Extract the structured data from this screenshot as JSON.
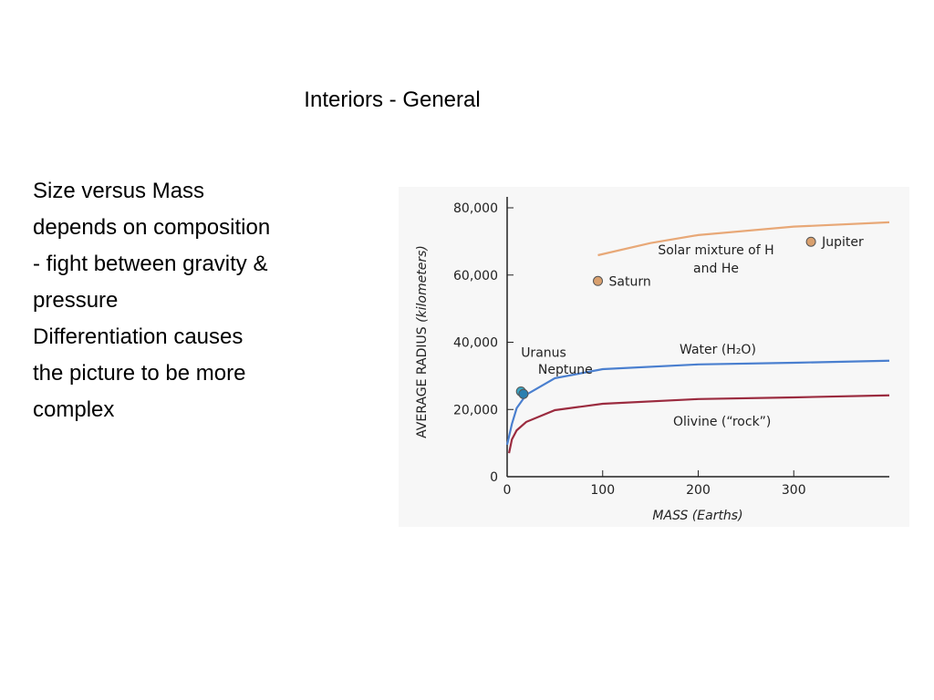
{
  "title": "Interiors - General",
  "body": [
    "Size versus Mass",
    "depends on composition",
    "- fight between gravity &",
    "pressure",
    "Differentiation causes",
    "the picture to be more",
    "complex"
  ],
  "chart_data": {
    "type": "line",
    "xlabel": "MASS (Earths)",
    "ylabel": "AVERAGE RADIUS",
    "ylabel_unit": "(kilometers)",
    "xlim": [
      0,
      400
    ],
    "xticks": [
      0,
      100,
      200,
      300
    ],
    "ylim": [
      0,
      80000
    ],
    "yticks": [
      0,
      {
        "value": 20000,
        "label": "20,000"
      },
      {
        "value": 40000,
        "label": "40,000"
      },
      {
        "value": 60000,
        "label": "60,000"
      },
      {
        "value": 80000,
        "label": "80,000"
      }
    ],
    "series": [
      {
        "name": "Solar mixture of H and He",
        "color": "#e8a877",
        "x": [
          95,
          150,
          200,
          300,
          400
        ],
        "values": [
          65900,
          69500,
          71900,
          74400,
          75700
        ]
      },
      {
        "name": "Water (H₂O)",
        "color": "#4a7fcf",
        "x": [
          0,
          5,
          10,
          20,
          50,
          100,
          200,
          300,
          400
        ],
        "values": [
          9500,
          15700,
          20400,
          24400,
          29300,
          32000,
          33400,
          33900,
          34500
        ]
      },
      {
        "name": "Olivine (“rock”)",
        "color": "#9b2b3f",
        "x": [
          2,
          5,
          10,
          20,
          50,
          100,
          200,
          300,
          400
        ],
        "values": [
          7000,
          11100,
          13800,
          16300,
          19800,
          21700,
          23100,
          23600,
          24200
        ]
      }
    ],
    "points": [
      {
        "name": "Jupiter",
        "x": 318,
        "y": 69911,
        "color": "#d9a06e"
      },
      {
        "name": "Saturn",
        "x": 95,
        "y": 58232,
        "color": "#d9a06e"
      },
      {
        "name": "Uranus",
        "x": 14.5,
        "y": 25362,
        "color": "#3aa6c4"
      },
      {
        "name": "Neptune",
        "x": 17.1,
        "y": 24622,
        "color": "#2a7fb0"
      }
    ]
  }
}
